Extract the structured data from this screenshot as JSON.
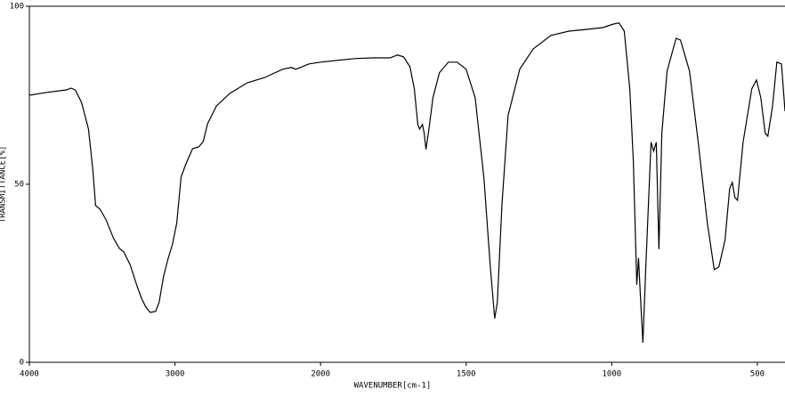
{
  "chart_data": {
    "type": "line",
    "x_label": "WAVENUMBER[cm-1]",
    "y_label": "TRANSMITTANCE[%]",
    "xlim": [
      4000,
      405
    ],
    "ylim": [
      0,
      100
    ],
    "xscale": {
      "break": 2000,
      "factor": 2
    },
    "xticks": [
      4000,
      3000,
      2000,
      1500,
      1000,
      500
    ],
    "yticks": [
      0,
      50,
      100
    ],
    "x": [
      4000,
      3897,
      3745,
      3715,
      3685,
      3642,
      3594,
      3564,
      3545,
      3515,
      3473,
      3424,
      3382,
      3352,
      3309,
      3261,
      3230,
      3200,
      3170,
      3133,
      3109,
      3079,
      3048,
      3018,
      2988,
      2958,
      2927,
      2879,
      2836,
      2806,
      2776,
      2715,
      2624,
      2503,
      2382,
      2261,
      2200,
      2170,
      2079,
      2000,
      1883,
      1822,
      1761,
      1736,
      1715,
      1693,
      1678,
      1666,
      1660,
      1650,
      1644,
      1638,
      1629,
      1614,
      1592,
      1561,
      1531,
      1500,
      1469,
      1439,
      1417,
      1402,
      1393,
      1377,
      1356,
      1316,
      1270,
      1209,
      1147,
      1086,
      1031,
      994,
      975,
      957,
      938,
      926,
      914,
      908,
      902,
      893,
      883,
      865,
      856,
      847,
      838,
      828,
      810,
      779,
      764,
      733,
      703,
      672,
      648,
      632,
      611,
      595,
      586,
      577,
      568,
      549,
      519,
      503,
      488,
      473,
      464,
      448,
      433,
      417,
      405
    ],
    "series": [
      {
        "color": "#000000",
        "values": [
          75,
          75.7,
          76.5,
          77,
          76.5,
          73,
          65.5,
          54,
          44,
          43,
          40,
          35,
          32,
          31,
          27.5,
          21.5,
          18,
          15.5,
          14,
          14.3,
          16.8,
          24,
          29,
          33,
          39,
          52,
          55.5,
          60,
          60.5,
          62,
          67,
          72,
          75.5,
          78.5,
          80,
          82.3,
          82.8,
          82.3,
          83.8,
          84.3,
          85.3,
          85.5,
          85.5,
          86.3,
          85.8,
          83,
          76.8,
          66.8,
          65.5,
          66.8,
          64.3,
          59.8,
          64.8,
          74.3,
          81.3,
          84.3,
          84.3,
          82.3,
          74.3,
          51.8,
          26.8,
          12.3,
          16.8,
          44.3,
          69.3,
          82.3,
          88,
          91.8,
          93,
          93.5,
          94,
          95,
          95.3,
          93,
          76.8,
          56.8,
          21.8,
          29.3,
          19.3,
          5.5,
          26.8,
          61.8,
          59.3,
          61.8,
          31.8,
          64.3,
          81.8,
          91,
          90.5,
          81.8,
          61.8,
          39.3,
          26,
          26.8,
          34.3,
          48.8,
          50.5,
          46.3,
          45.5,
          61.8,
          76.8,
          79.3,
          74.3,
          64.3,
          63.5,
          71.8,
          84.3,
          83.8,
          70.5
        ]
      }
    ]
  }
}
